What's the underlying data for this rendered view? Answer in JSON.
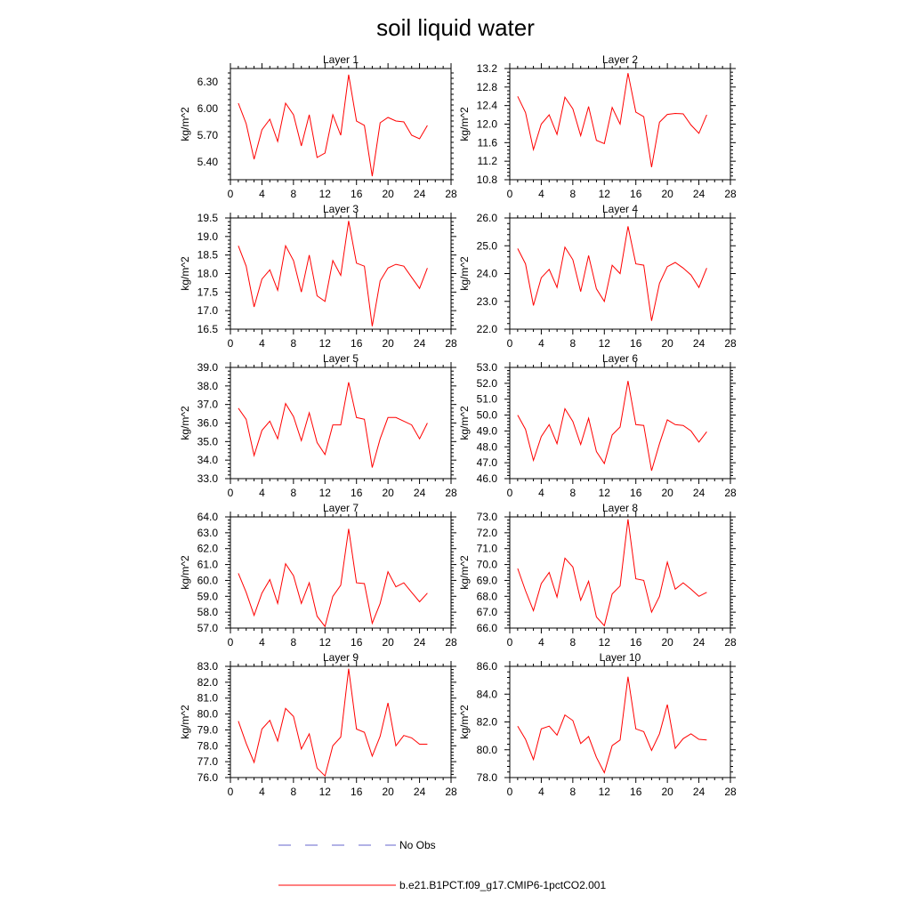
{
  "figure": {
    "title": "soil liquid water",
    "ylabel": "kg/m^2"
  },
  "legend": {
    "entries": [
      {
        "label": "No Obs",
        "color": "#6666cc",
        "style": "dashed"
      },
      {
        "label": "b.e21.B1PCT.f09_g17.CMIP6-1pctCO2.001",
        "color": "#ff0000",
        "style": "solid"
      }
    ]
  },
  "chart_data": [
    {
      "type": "line",
      "title": "Layer 1",
      "ylabel": "kg/m^2",
      "xlim": [
        0,
        28
      ],
      "xticks": [
        0,
        4,
        8,
        12,
        16,
        20,
        24,
        28
      ],
      "ylim": [
        5.2,
        6.45
      ],
      "yticks": [
        "5.40",
        "5.70",
        "6.00",
        "6.30"
      ],
      "grid": false,
      "x": [
        1,
        2,
        3,
        4,
        5,
        6,
        7,
        8,
        9,
        10,
        11,
        12,
        13,
        14,
        15,
        16,
        17,
        18,
        19,
        20,
        21,
        22,
        23,
        24,
        25
      ],
      "series": [
        {
          "name": "b.e21.B1PCT.f09_g17.CMIP6-1pctCO2.001",
          "color": "#ff0000",
          "values": [
            6.06,
            5.83,
            5.43,
            5.76,
            5.88,
            5.63,
            6.06,
            5.93,
            5.58,
            5.93,
            5.45,
            5.5,
            5.93,
            5.7,
            6.38,
            5.86,
            5.81,
            5.24,
            5.84,
            5.9,
            5.86,
            5.85,
            5.7,
            5.66,
            5.81
          ]
        }
      ]
    },
    {
      "type": "line",
      "title": "Layer 2",
      "ylabel": "kg/m^2",
      "xlim": [
        0,
        28
      ],
      "xticks": [
        0,
        4,
        8,
        12,
        16,
        20,
        24,
        28
      ],
      "ylim": [
        10.8,
        13.2
      ],
      "yticks": [
        "10.8",
        "11.2",
        "11.6",
        "12.0",
        "12.4",
        "12.8",
        "13.2"
      ],
      "grid": false,
      "x": [
        1,
        2,
        3,
        4,
        5,
        6,
        7,
        8,
        9,
        10,
        11,
        12,
        13,
        14,
        15,
        16,
        17,
        18,
        19,
        20,
        21,
        22,
        23,
        24,
        25
      ],
      "series": [
        {
          "name": "b.e21.B1PCT.f09_g17.CMIP6-1pctCO2.001",
          "color": "#ff0000",
          "values": [
            12.6,
            12.25,
            11.45,
            12.0,
            12.2,
            11.78,
            12.58,
            12.33,
            11.75,
            12.38,
            11.65,
            11.58,
            12.36,
            12.0,
            13.1,
            12.26,
            12.16,
            11.07,
            12.04,
            12.21,
            12.23,
            12.22,
            11.98,
            11.8,
            12.2
          ]
        }
      ]
    },
    {
      "type": "line",
      "title": "Layer 3",
      "ylabel": "kg/m^2",
      "xlim": [
        0,
        28
      ],
      "xticks": [
        0,
        4,
        8,
        12,
        16,
        20,
        24,
        28
      ],
      "ylim": [
        16.5,
        19.5
      ],
      "yticks": [
        "16.5",
        "17.0",
        "17.5",
        "18.0",
        "18.5",
        "19.0",
        "19.5"
      ],
      "grid": false,
      "x": [
        1,
        2,
        3,
        4,
        5,
        6,
        7,
        8,
        9,
        10,
        11,
        12,
        13,
        14,
        15,
        16,
        17,
        18,
        19,
        20,
        21,
        22,
        23,
        24,
        25
      ],
      "series": [
        {
          "name": "b.e21.B1PCT.f09_g17.CMIP6-1pctCO2.001",
          "color": "#ff0000",
          "values": [
            18.75,
            18.2,
            17.1,
            17.85,
            18.1,
            17.55,
            18.75,
            18.35,
            17.5,
            18.5,
            17.4,
            17.25,
            18.35,
            17.95,
            19.42,
            18.28,
            18.2,
            16.58,
            17.8,
            18.15,
            18.25,
            18.2,
            17.9,
            17.6,
            18.15
          ]
        }
      ]
    },
    {
      "type": "line",
      "title": "Layer 4",
      "ylabel": "kg/m^2",
      "xlim": [
        0,
        28
      ],
      "xticks": [
        0,
        4,
        8,
        12,
        16,
        20,
        24,
        28
      ],
      "ylim": [
        22.0,
        26.0
      ],
      "yticks": [
        "22.0",
        "23.0",
        "24.0",
        "25.0",
        "26.0"
      ],
      "grid": false,
      "x": [
        1,
        2,
        3,
        4,
        5,
        6,
        7,
        8,
        9,
        10,
        11,
        12,
        13,
        14,
        15,
        16,
        17,
        18,
        19,
        20,
        21,
        22,
        23,
        24,
        25
      ],
      "series": [
        {
          "name": "b.e21.B1PCT.f09_g17.CMIP6-1pctCO2.001",
          "color": "#ff0000",
          "values": [
            24.9,
            24.35,
            22.85,
            23.85,
            24.15,
            23.5,
            24.95,
            24.5,
            23.35,
            24.65,
            23.45,
            23.0,
            24.3,
            24.0,
            25.7,
            24.35,
            24.3,
            22.3,
            23.65,
            24.25,
            24.4,
            24.2,
            23.95,
            23.5,
            24.2
          ]
        }
      ]
    },
    {
      "type": "line",
      "title": "Layer 5",
      "ylabel": "kg/m^2",
      "xlim": [
        0,
        28
      ],
      "xticks": [
        0,
        4,
        8,
        12,
        16,
        20,
        24,
        28
      ],
      "ylim": [
        33.0,
        39.0
      ],
      "yticks": [
        "33.0",
        "34.0",
        "35.0",
        "36.0",
        "37.0",
        "38.0",
        "39.0"
      ],
      "grid": false,
      "x": [
        1,
        2,
        3,
        4,
        5,
        6,
        7,
        8,
        9,
        10,
        11,
        12,
        13,
        14,
        15,
        16,
        17,
        18,
        19,
        20,
        21,
        22,
        23,
        24,
        25
      ],
      "series": [
        {
          "name": "b.e21.B1PCT.f09_g17.CMIP6-1pctCO2.001",
          "color": "#ff0000",
          "values": [
            36.8,
            36.2,
            34.25,
            35.6,
            36.1,
            35.15,
            37.05,
            36.35,
            35.05,
            36.55,
            34.95,
            34.3,
            35.9,
            35.9,
            38.2,
            36.3,
            36.2,
            33.6,
            35.15,
            36.3,
            36.3,
            36.1,
            35.9,
            35.15,
            36.0
          ]
        }
      ]
    },
    {
      "type": "line",
      "title": "Layer 6",
      "ylabel": "kg/m^2",
      "xlim": [
        0,
        28
      ],
      "xticks": [
        0,
        4,
        8,
        12,
        16,
        20,
        24,
        28
      ],
      "ylim": [
        46.0,
        53.0
      ],
      "yticks": [
        "46.0",
        "47.0",
        "48.0",
        "49.0",
        "50.0",
        "51.0",
        "52.0",
        "53.0"
      ],
      "grid": false,
      "x": [
        1,
        2,
        3,
        4,
        5,
        6,
        7,
        8,
        9,
        10,
        11,
        12,
        13,
        14,
        15,
        16,
        17,
        18,
        19,
        20,
        21,
        22,
        23,
        24,
        25
      ],
      "series": [
        {
          "name": "b.e21.B1PCT.f09_g17.CMIP6-1pctCO2.001",
          "color": "#ff0000",
          "values": [
            50.0,
            49.1,
            47.15,
            48.65,
            49.4,
            48.2,
            50.4,
            49.6,
            48.15,
            49.8,
            47.7,
            46.95,
            48.75,
            49.25,
            52.15,
            49.4,
            49.35,
            46.5,
            48.2,
            49.7,
            49.4,
            49.35,
            49.0,
            48.3,
            48.95
          ]
        }
      ]
    },
    {
      "type": "line",
      "title": "Layer 7",
      "ylabel": "kg/m^2",
      "xlim": [
        0,
        28
      ],
      "xticks": [
        0,
        4,
        8,
        12,
        16,
        20,
        24,
        28
      ],
      "ylim": [
        57.0,
        64.0
      ],
      "yticks": [
        "57.0",
        "58.0",
        "59.0",
        "60.0",
        "61.0",
        "62.0",
        "63.0",
        "64.0"
      ],
      "grid": false,
      "x": [
        1,
        2,
        3,
        4,
        5,
        6,
        7,
        8,
        9,
        10,
        11,
        12,
        13,
        14,
        15,
        16,
        17,
        18,
        19,
        20,
        21,
        22,
        23,
        24,
        25
      ],
      "series": [
        {
          "name": "b.e21.B1PCT.f09_g17.CMIP6-1pctCO2.001",
          "color": "#ff0000",
          "values": [
            60.45,
            59.25,
            57.8,
            59.2,
            60.05,
            58.55,
            61.05,
            60.3,
            58.55,
            59.85,
            57.75,
            57.1,
            59.0,
            59.7,
            63.25,
            59.85,
            59.8,
            57.3,
            58.55,
            60.55,
            59.6,
            59.85,
            59.25,
            58.65,
            59.2
          ]
        }
      ]
    },
    {
      "type": "line",
      "title": "Layer 8",
      "ylabel": "kg/m^2",
      "xlim": [
        0,
        28
      ],
      "xticks": [
        0,
        4,
        8,
        12,
        16,
        20,
        24,
        28
      ],
      "ylim": [
        66.0,
        73.0
      ],
      "yticks": [
        "66.0",
        "67.0",
        "68.0",
        "69.0",
        "70.0",
        "71.0",
        "72.0",
        "73.0"
      ],
      "grid": false,
      "x": [
        1,
        2,
        3,
        4,
        5,
        6,
        7,
        8,
        9,
        10,
        11,
        12,
        13,
        14,
        15,
        16,
        17,
        18,
        19,
        20,
        21,
        22,
        23,
        24,
        25
      ],
      "series": [
        {
          "name": "b.e21.B1PCT.f09_g17.CMIP6-1pctCO2.001",
          "color": "#ff0000",
          "values": [
            69.75,
            68.35,
            67.1,
            68.8,
            69.5,
            67.95,
            70.4,
            69.85,
            67.75,
            68.95,
            66.7,
            66.15,
            68.15,
            68.65,
            72.85,
            69.1,
            69.0,
            67.0,
            68.0,
            70.15,
            68.45,
            68.85,
            68.45,
            68.0,
            68.25
          ]
        }
      ]
    },
    {
      "type": "line",
      "title": "Layer 9",
      "ylabel": "kg/m^2",
      "xlim": [
        0,
        28
      ],
      "xticks": [
        0,
        4,
        8,
        12,
        16,
        20,
        24,
        28
      ],
      "ylim": [
        76.0,
        83.0
      ],
      "yticks": [
        "76.0",
        "77.0",
        "78.0",
        "79.0",
        "80.0",
        "81.0",
        "82.0",
        "83.0"
      ],
      "grid": false,
      "x": [
        1,
        2,
        3,
        4,
        5,
        6,
        7,
        8,
        9,
        10,
        11,
        12,
        13,
        14,
        15,
        16,
        17,
        18,
        19,
        20,
        21,
        22,
        23,
        24,
        25
      ],
      "series": [
        {
          "name": "b.e21.B1PCT.f09_g17.CMIP6-1pctCO2.001",
          "color": "#ff0000",
          "values": [
            79.55,
            78.15,
            76.95,
            79.05,
            79.6,
            78.3,
            80.35,
            79.85,
            77.8,
            78.75,
            76.6,
            76.1,
            78.0,
            78.55,
            82.85,
            79.05,
            78.85,
            77.35,
            78.6,
            80.7,
            78.0,
            78.65,
            78.5,
            78.1,
            78.1
          ]
        }
      ]
    },
    {
      "type": "line",
      "title": "Layer 10",
      "ylabel": "kg/m^2",
      "xlim": [
        0,
        28
      ],
      "xticks": [
        0,
        4,
        8,
        12,
        16,
        20,
        24,
        28
      ],
      "ylim": [
        78.0,
        86.0
      ],
      "yticks": [
        "78.0",
        "80.0",
        "82.0",
        "84.0",
        "86.0"
      ],
      "grid": false,
      "x": [
        1,
        2,
        3,
        4,
        5,
        6,
        7,
        8,
        9,
        10,
        11,
        12,
        13,
        14,
        15,
        16,
        17,
        18,
        19,
        20,
        21,
        22,
        23,
        24,
        25
      ],
      "series": [
        {
          "name": "b.e21.B1PCT.f09_g17.CMIP6-1pctCO2.001",
          "color": "#ff0000",
          "values": [
            81.7,
            80.75,
            79.3,
            81.5,
            81.7,
            81.05,
            82.5,
            82.1,
            80.45,
            80.95,
            79.45,
            78.35,
            80.3,
            80.7,
            85.25,
            81.5,
            81.3,
            79.95,
            81.15,
            83.25,
            80.1,
            80.8,
            81.15,
            80.75,
            80.7
          ]
        }
      ]
    }
  ]
}
